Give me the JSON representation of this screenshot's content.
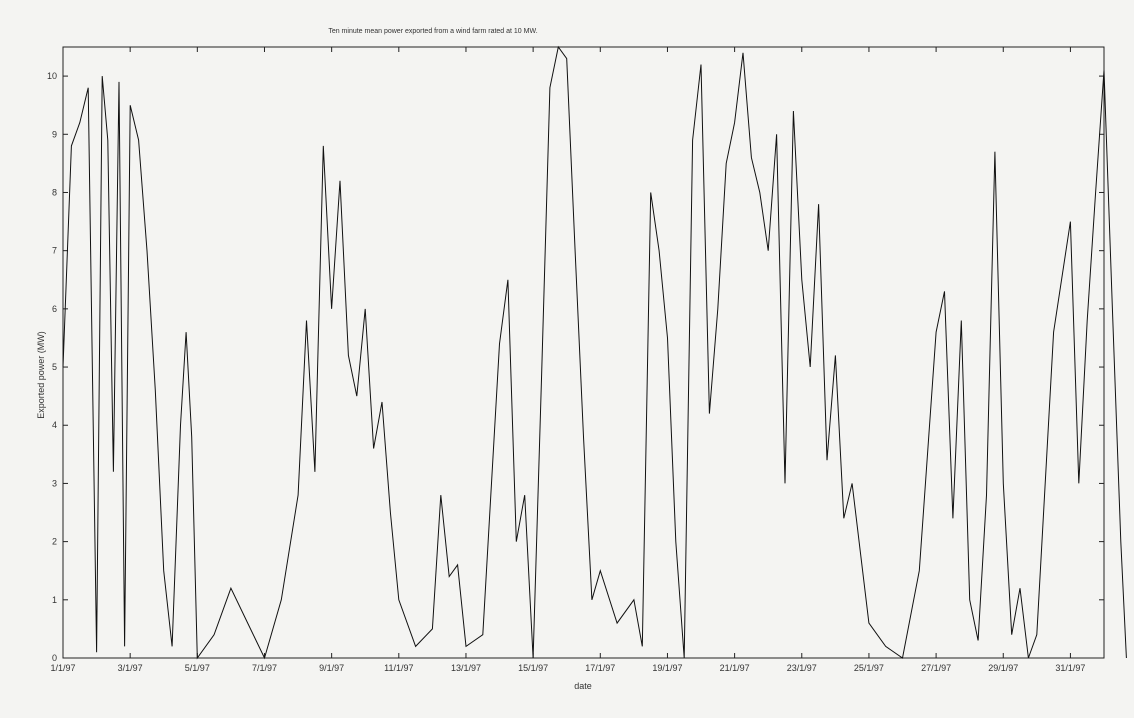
{
  "chart_data": {
    "type": "line",
    "title": "Ten minute mean power exported from a wind farm rated at 10 MW.",
    "xlabel": "date",
    "ylabel": "Exported power (MW)",
    "xlim": [
      "1/1/97",
      "1/2/97"
    ],
    "ylim": [
      0,
      10.5
    ],
    "yticks": [
      0,
      1,
      2,
      3,
      4,
      5,
      6,
      7,
      8,
      9,
      10
    ],
    "xticks": [
      "1/1/97",
      "3/1/97",
      "5/1/97",
      "7/1/97",
      "9/1/97",
      "11/1/97",
      "13/1/97",
      "15/1/97",
      "17/1/97",
      "19/1/97",
      "21/1/97",
      "23/1/97",
      "25/1/97",
      "27/1/97",
      "29/1/97",
      "31/1/97"
    ],
    "grid": false,
    "series": [
      {
        "color": "#111111",
        "points": [
          [
            "1/1/97",
            5.0
          ],
          [
            "1/1/97 06:00",
            8.8
          ],
          [
            "1/1/97 12:00",
            9.2
          ],
          [
            "1/1/97 18:00",
            9.8
          ],
          [
            "2/1/97 00:00",
            0.1
          ],
          [
            "2/1/97 04:00",
            10.0
          ],
          [
            "2/1/97 08:00",
            8.9
          ],
          [
            "2/1/97 12:00",
            3.2
          ],
          [
            "2/1/97 16:00",
            9.9
          ],
          [
            "2/1/97 20:00",
            0.2
          ],
          [
            "3/1/97 00:00",
            9.5
          ],
          [
            "3/1/97 06:00",
            8.9
          ],
          [
            "3/1/97 12:00",
            7.0
          ],
          [
            "3/1/97 18:00",
            4.6
          ],
          [
            "4/1/97 00:00",
            1.5
          ],
          [
            "4/1/97 06:00",
            0.2
          ],
          [
            "4/1/97 12:00",
            4.0
          ],
          [
            "4/1/97 16:00",
            5.6
          ],
          [
            "4/1/97 20:00",
            3.8
          ],
          [
            "5/1/97 00:00",
            0.0
          ],
          [
            "5/1/97 12:00",
            0.4
          ],
          [
            "6/1/97 00:00",
            1.2
          ],
          [
            "6/1/97 12:00",
            0.6
          ],
          [
            "7/1/97 00:00",
            0.0
          ],
          [
            "7/1/97 12:00",
            1.0
          ],
          [
            "8/1/97 00:00",
            2.8
          ],
          [
            "8/1/97 06:00",
            5.8
          ],
          [
            "8/1/97 12:00",
            3.2
          ],
          [
            "8/1/97 18:00",
            8.8
          ],
          [
            "9/1/97 00:00",
            6.0
          ],
          [
            "9/1/97 06:00",
            8.2
          ],
          [
            "9/1/97 12:00",
            5.2
          ],
          [
            "9/1/97 18:00",
            4.5
          ],
          [
            "10/1/97 00:00",
            6.0
          ],
          [
            "10/1/97 06:00",
            3.6
          ],
          [
            "10/1/97 12:00",
            4.4
          ],
          [
            "10/1/97 18:00",
            2.5
          ],
          [
            "11/1/97 00:00",
            1.0
          ],
          [
            "11/1/97 12:00",
            0.2
          ],
          [
            "12/1/97 00:00",
            0.5
          ],
          [
            "12/1/97 06:00",
            2.8
          ],
          [
            "12/1/97 12:00",
            1.4
          ],
          [
            "12/1/97 18:00",
            1.6
          ],
          [
            "13/1/97 00:00",
            0.2
          ],
          [
            "13/1/97 12:00",
            0.4
          ],
          [
            "14/1/97 00:00",
            5.4
          ],
          [
            "14/1/97 06:00",
            6.5
          ],
          [
            "14/1/97 12:00",
            2.0
          ],
          [
            "14/1/97 18:00",
            2.8
          ],
          [
            "15/1/97 00:00",
            0.0
          ],
          [
            "15/1/97 06:00",
            4.8
          ],
          [
            "15/1/97 12:00",
            9.8
          ],
          [
            "15/1/97 18:00",
            10.5
          ],
          [
            "16/1/97 00:00",
            10.3
          ],
          [
            "16/1/97 06:00",
            7.0
          ],
          [
            "16/1/97 12:00",
            3.8
          ],
          [
            "16/1/97 18:00",
            1.0
          ],
          [
            "17/1/97 00:00",
            1.5
          ],
          [
            "17/1/97 12:00",
            0.6
          ],
          [
            "18/1/97 00:00",
            1.0
          ],
          [
            "18/1/97 06:00",
            0.2
          ],
          [
            "18/1/97 12:00",
            8.0
          ],
          [
            "18/1/97 18:00",
            7.0
          ],
          [
            "19/1/97 00:00",
            5.5
          ],
          [
            "19/1/97 06:00",
            2.0
          ],
          [
            "19/1/97 12:00",
            0.0
          ],
          [
            "19/1/97 18:00",
            8.9
          ],
          [
            "20/1/97 00:00",
            10.2
          ],
          [
            "20/1/97 06:00",
            4.2
          ],
          [
            "20/1/97 12:00",
            6.0
          ],
          [
            "20/1/97 18:00",
            8.5
          ],
          [
            "21/1/97 00:00",
            9.2
          ],
          [
            "21/1/97 06:00",
            10.4
          ],
          [
            "21/1/97 12:00",
            8.6
          ],
          [
            "21/1/97 18:00",
            8.0
          ],
          [
            "22/1/97 00:00",
            7.0
          ],
          [
            "22/1/97 06:00",
            9.0
          ],
          [
            "22/1/97 12:00",
            3.0
          ],
          [
            "22/1/97 18:00",
            9.4
          ],
          [
            "23/1/97 00:00",
            6.5
          ],
          [
            "23/1/97 06:00",
            5.0
          ],
          [
            "23/1/97 12:00",
            7.8
          ],
          [
            "23/1/97 18:00",
            3.4
          ],
          [
            "24/1/97 00:00",
            5.2
          ],
          [
            "24/1/97 06:00",
            2.4
          ],
          [
            "24/1/97 12:00",
            3.0
          ],
          [
            "24/1/97 18:00",
            1.8
          ],
          [
            "25/1/97 00:00",
            0.6
          ],
          [
            "25/1/97 12:00",
            0.2
          ],
          [
            "26/1/97 00:00",
            0.0
          ],
          [
            "26/1/97 12:00",
            1.5
          ],
          [
            "27/1/97 00:00",
            5.6
          ],
          [
            "27/1/97 06:00",
            6.3
          ],
          [
            "27/1/97 12:00",
            2.4
          ],
          [
            "27/1/97 18:00",
            5.8
          ],
          [
            "28/1/97 00:00",
            1.0
          ],
          [
            "28/1/97 06:00",
            0.3
          ],
          [
            "28/1/97 12:00",
            2.8
          ],
          [
            "28/1/97 18:00",
            8.7
          ],
          [
            "29/1/97 00:00",
            3.0
          ],
          [
            "29/1/97 06:00",
            0.4
          ],
          [
            "29/1/97 12:00",
            1.2
          ],
          [
            "29/1/97 18:00",
            0.0
          ],
          [
            "30/1/97 00:00",
            0.4
          ],
          [
            "30/1/97 12:00",
            5.6
          ],
          [
            "31/1/97 00:00",
            7.5
          ],
          [
            "31/1/97 06:00",
            3.0
          ],
          [
            "31/1/97 12:00",
            5.8
          ],
          [
            "31/1/97 18:00",
            8.0
          ],
          [
            "1/2/97 00:00",
            10.1
          ],
          [
            "1/2/97 06:00",
            6.0
          ],
          [
            "1/2/97 12:00",
            2.0
          ],
          [
            "1/2/97 16:00",
            0.0
          ]
        ]
      }
    ]
  }
}
